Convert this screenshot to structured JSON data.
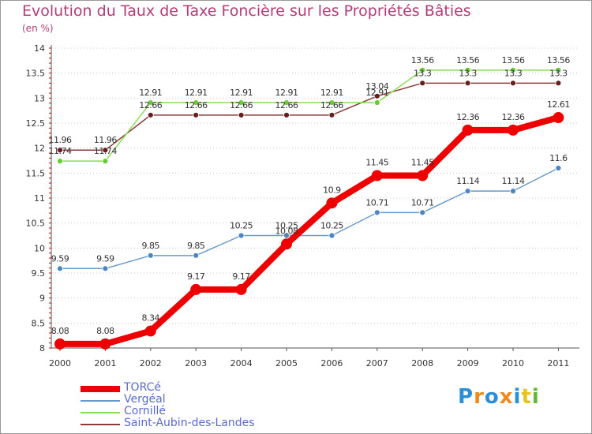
{
  "chart_data": {
    "type": "line",
    "title": "Evolution du Taux de Taxe Foncière sur les Propriétés Bâties",
    "unit_label": "(en %)",
    "xlabel": "",
    "ylabel": "",
    "x": [
      "2000",
      "2001",
      "2002",
      "2003",
      "2004",
      "2005",
      "2006",
      "2007",
      "2008",
      "2009",
      "2010",
      "2011"
    ],
    "ylim": [
      8,
      14
    ],
    "yticks": [
      8,
      8.5,
      9,
      9.5,
      10,
      10.5,
      11,
      11.5,
      12,
      12.5,
      13,
      13.5,
      14
    ],
    "ytick_labels": [
      "8",
      "8.5",
      "9",
      "9.5",
      "10",
      "10.5",
      "11",
      "11.5",
      "12",
      "12.5",
      "13",
      "13.5",
      "14"
    ],
    "grid": "horizontal dotted",
    "series": [
      {
        "name": "Saint-Aubin-des-Landes",
        "color": "#8b3a3a",
        "marker_color": "#6a1d1d",
        "values": [
          11.96,
          11.96,
          12.66,
          12.66,
          12.66,
          12.66,
          12.66,
          13.04,
          13.3,
          13.3,
          13.3,
          13.3
        ],
        "labels": [
          "11.96",
          "11.96",
          "12.66",
          "12.66",
          "12.66",
          "12.66",
          "12.66",
          "13.04",
          "13.3",
          "13.3",
          "13.3",
          "13.3"
        ]
      },
      {
        "name": "Cornillé",
        "color": "#88dd55",
        "marker_color": "#66cc33",
        "values": [
          11.74,
          11.74,
          12.91,
          12.91,
          12.91,
          12.91,
          12.91,
          12.91,
          13.56,
          13.56,
          13.56,
          13.56
        ],
        "labels": [
          "11.74",
          "11.74",
          "12.91",
          "12.91",
          "12.91",
          "12.91",
          "12.91",
          "12.91",
          "13.56",
          "13.56",
          "13.56",
          "13.56"
        ]
      },
      {
        "name": "Vergéal",
        "color": "#6699cc",
        "marker_color": "#4a86c4",
        "values": [
          9.59,
          9.59,
          9.85,
          9.85,
          10.25,
          10.25,
          10.25,
          10.71,
          10.71,
          11.14,
          11.14,
          11.6
        ],
        "labels": [
          "9.59",
          "9.59",
          "9.85",
          "9.85",
          "10.25",
          "10.25",
          "10.25",
          "10.71",
          "10.71",
          "11.14",
          "11.14",
          "11.6"
        ]
      },
      {
        "name": "TORCé",
        "color": "#ee0000",
        "marker_color": "#ee0000",
        "values": [
          8.08,
          8.08,
          8.34,
          9.17,
          9.17,
          10.08,
          10.9,
          11.45,
          11.45,
          12.36,
          12.36,
          12.61
        ],
        "labels": [
          "8.08",
          "8.08",
          "8.34",
          "9.17",
          "9.17",
          "10.08",
          "10.9",
          "11.45",
          "11.45",
          "12.36",
          "12.36",
          "12.61"
        ]
      }
    ],
    "legend": [
      {
        "name": "TORCé",
        "color": "#ee0000"
      },
      {
        "name": "Vergéal",
        "color": "#6699cc"
      },
      {
        "name": "Cornillé",
        "color": "#88dd55"
      },
      {
        "name": "Saint-Aubin-des-Landes",
        "color": "#8b3a3a"
      }
    ],
    "legend_position": "bottom-left"
  },
  "logo": {
    "letters": [
      "P",
      "r",
      "o",
      "x",
      "i",
      "t",
      "i"
    ],
    "colors": [
      "#2a8fd6",
      "#f08a1c",
      "#2a8fd6",
      "#f08a1c",
      "#2a8fd6",
      "#e8c41a",
      "#60b830"
    ]
  }
}
